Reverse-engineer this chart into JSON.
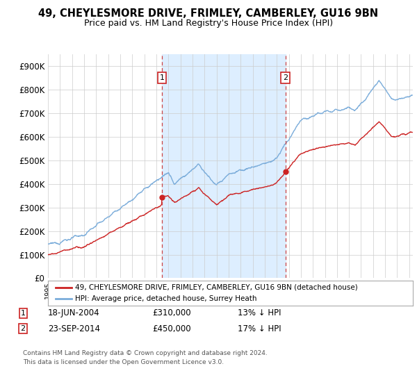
{
  "title_line1": "49, CHEYLESMORE DRIVE, FRIMLEY, CAMBERLEY, GU16 9BN",
  "title_line2": "Price paid vs. HM Land Registry's House Price Index (HPI)",
  "ylim": [
    0,
    950000
  ],
  "yticks": [
    0,
    100000,
    200000,
    300000,
    400000,
    500000,
    600000,
    700000,
    800000,
    900000
  ],
  "xlim_start": 1995.0,
  "xlim_end": 2025.3,
  "hpi_color": "#7aacda",
  "price_color": "#cc2222",
  "sale1_date": 2004.46,
  "sale1_price": 310000,
  "sale2_date": 2014.72,
  "sale2_price": 450000,
  "legend_label1": "49, CHEYLESMORE DRIVE, FRIMLEY, CAMBERLEY, GU16 9BN (detached house)",
  "legend_label2": "HPI: Average price, detached house, Surrey Heath",
  "footer": "Contains HM Land Registry data © Crown copyright and database right 2024.\nThis data is licensed under the Open Government Licence v3.0.",
  "bg_color": "#ffffff",
  "plot_bg": "#ffffff",
  "shade_color": "#ddeeff"
}
